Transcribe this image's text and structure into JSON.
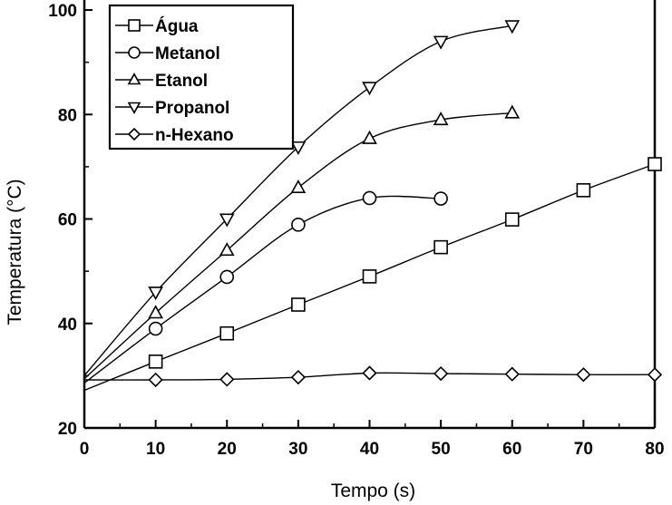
{
  "chart_data": {
    "type": "line",
    "xlabel": "Tempo (s)",
    "ylabel": "Temperatura (°C)",
    "xlim": [
      0,
      80
    ],
    "ylim": [
      20,
      104
    ],
    "xticks": [
      0,
      10,
      20,
      30,
      40,
      50,
      60,
      70,
      80
    ],
    "yticks": [
      20,
      40,
      60,
      80,
      100
    ],
    "grid": false,
    "legend_position": "top-left",
    "series": [
      {
        "name": "Água",
        "marker": "square",
        "x": [
          0,
          10,
          20,
          30,
          40,
          50,
          60,
          70,
          80
        ],
        "y": [
          27.2,
          32.7,
          38.1,
          43.6,
          49.0,
          54.6,
          59.9,
          65.5,
          70.5
        ]
      },
      {
        "name": "Metanol",
        "marker": "circle",
        "x": [
          0,
          10,
          20,
          30,
          40,
          50
        ],
        "y": [
          28.6,
          39.0,
          48.9,
          58.9,
          64.0,
          63.9
        ]
      },
      {
        "name": "Etanol",
        "marker": "triangle-up",
        "x": [
          0,
          10,
          20,
          30,
          40,
          50,
          60
        ],
        "y": [
          29.4,
          42.0,
          54.0,
          66.0,
          75.4,
          79.0,
          80.3
        ]
      },
      {
        "name": "Propanol",
        "marker": "triangle-down",
        "x": [
          0,
          10,
          20,
          30,
          40,
          50,
          60
        ],
        "y": [
          30.0,
          46.0,
          60.0,
          73.8,
          85.2,
          94.0,
          97.0
        ]
      },
      {
        "name": "n-Hexano",
        "marker": "diamond",
        "x": [
          0,
          10,
          20,
          30,
          40,
          50,
          60,
          70,
          80
        ],
        "y": [
          29.2,
          29.2,
          29.3,
          29.7,
          30.5,
          30.4,
          30.3,
          30.2,
          30.2
        ]
      }
    ]
  }
}
